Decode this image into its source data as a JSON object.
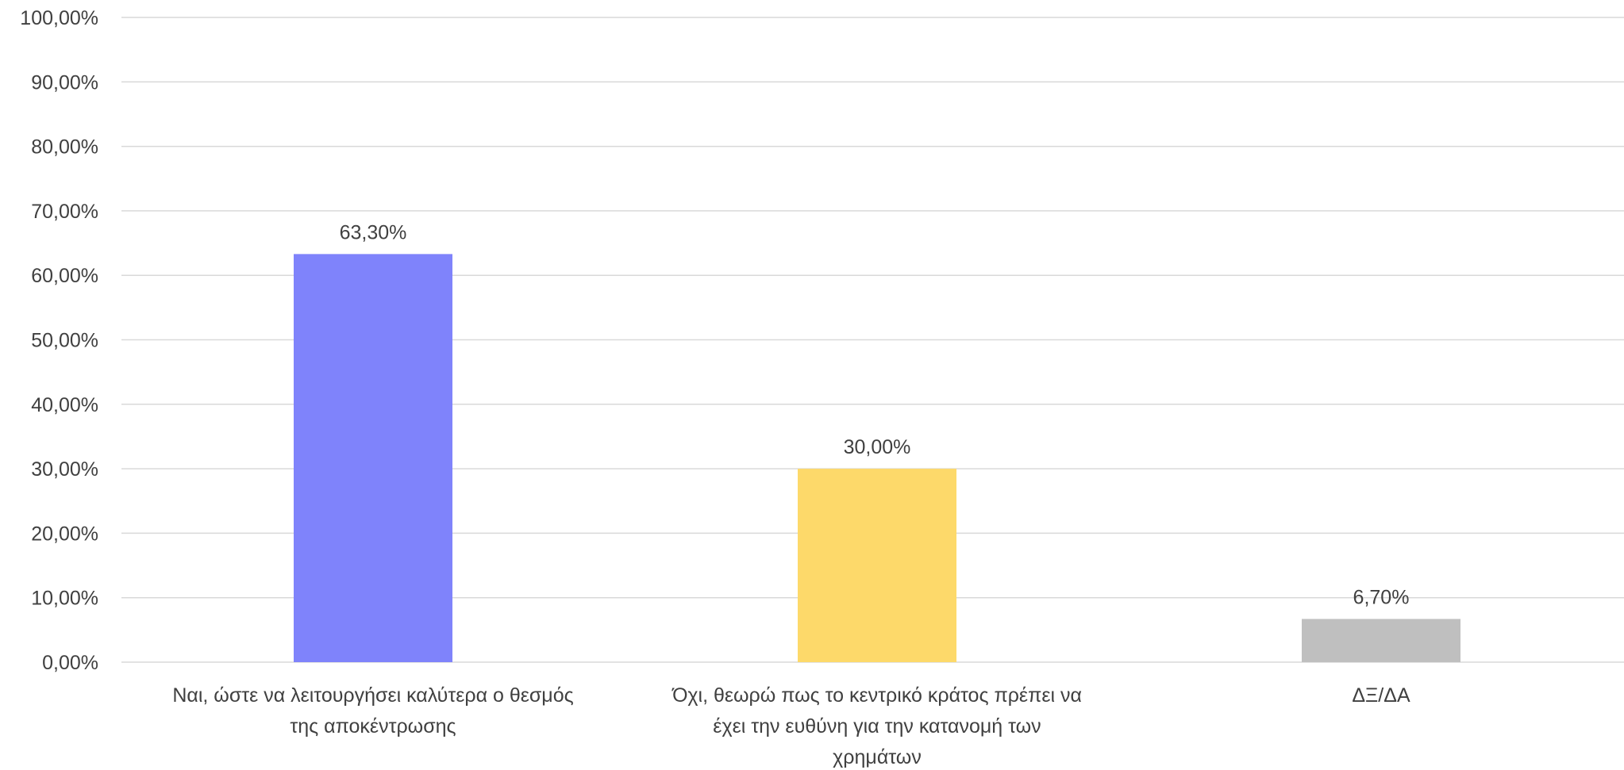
{
  "chart_data": {
    "type": "bar",
    "categories": [
      [
        "Ναι, ώστε να λειτουργήσει καλύτερα ο θεσμός",
        "της αποκέντρωσης"
      ],
      [
        "Όχι, θεωρώ πως το κεντρικό κράτος πρέπει να",
        "έχει την ευθύνη για την κατανομή των",
        "χρημάτων"
      ],
      [
        "ΔΞ/ΔΑ"
      ]
    ],
    "values": [
      63.3,
      30.0,
      6.7
    ],
    "data_labels": [
      "63,30%",
      "30,00%",
      "6,70%"
    ],
    "colors": [
      "#7f83fb",
      "#fdd96a",
      "#bfbfbf"
    ],
    "ylim": [
      0,
      100
    ],
    "y_ticks": [
      0,
      10,
      20,
      30,
      40,
      50,
      60,
      70,
      80,
      90,
      100
    ],
    "y_tick_labels": [
      "0,00%",
      "10,00%",
      "20,00%",
      "30,00%",
      "40,00%",
      "50,00%",
      "60,00%",
      "70,00%",
      "80,00%",
      "90,00%",
      "100,00%"
    ],
    "grid": true,
    "legend": "none",
    "title": "",
    "xlabel": "",
    "ylabel": ""
  }
}
